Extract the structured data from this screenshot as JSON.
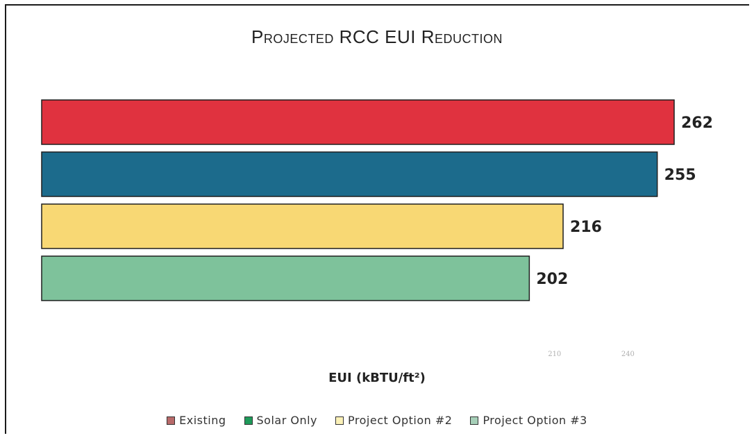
{
  "chart_data": {
    "type": "bar",
    "orientation": "horizontal",
    "title": "Projected RCC EUI Reduction",
    "xlabel": "EUI (kBTU/ft²)",
    "ylabel": "",
    "legend_position": "bottom",
    "grid": false,
    "xlim": [
      0,
      262
    ],
    "x_ticks": [
      "",
      "",
      "",
      "",
      "",
      "",
      "210",
      "240",
      ""
    ],
    "series": [
      {
        "name": "Existing",
        "value": 262,
        "label": "262",
        "color": "#e0323f"
      },
      {
        "name": "Solar Only",
        "value": 255,
        "label": "255",
        "color": "#1c6b8c"
      },
      {
        "name": "Project Option #2",
        "value": 216,
        "label": "216",
        "color": "#f8d874"
      },
      {
        "name": "Project Option #3",
        "value": 202,
        "label": "202",
        "color": "#7ec29b"
      }
    ]
  },
  "legend": {
    "items": [
      {
        "label": "Existing",
        "color": "#b86a6a"
      },
      {
        "label": "Solar Only",
        "color": "#1f9a5a"
      },
      {
        "label": "Project Option #2",
        "color": "#fbf1b8"
      },
      {
        "label": "Project Option #3",
        "color": "#a6cfb8"
      }
    ]
  }
}
